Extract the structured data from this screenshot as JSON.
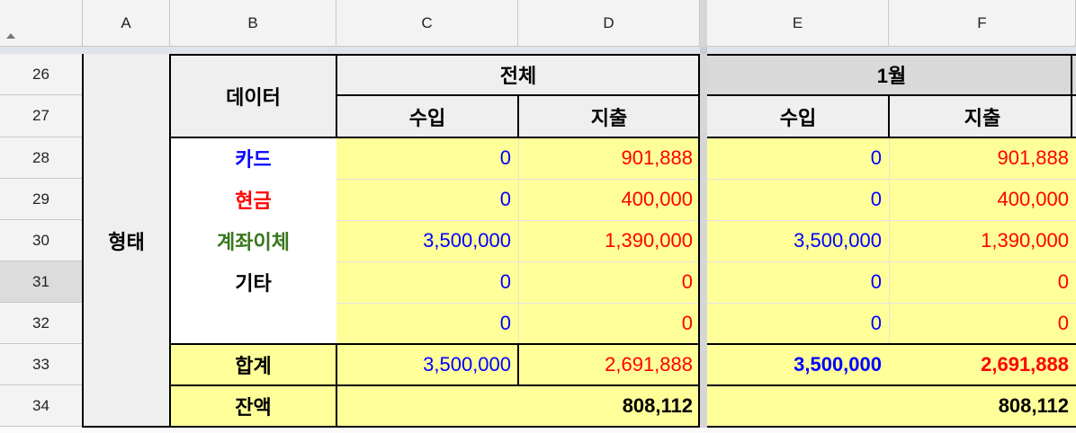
{
  "columns": [
    "A",
    "B",
    "C",
    "D",
    "E",
    "F"
  ],
  "rows": [
    "26",
    "27",
    "28",
    "29",
    "30",
    "31",
    "32",
    "33",
    "34"
  ],
  "colors": {
    "blue": "#0000ff",
    "red": "#ff0000",
    "green": "#38761d",
    "yellow": "#ffff99",
    "gray_header": "#d9d9d9",
    "light_gray": "#efefef"
  },
  "table": {
    "category": "형태",
    "data_label": "데이터",
    "total_header": "전체",
    "month_header": "1월",
    "income_label": "수입",
    "expense_label": "지출",
    "items": [
      {
        "label": "카드",
        "total_income": "0",
        "total_expense": "901,888",
        "month_income": "0",
        "month_expense": "901,888"
      },
      {
        "label": "현금",
        "total_income": "0",
        "total_expense": "400,000",
        "month_income": "0",
        "month_expense": "400,000"
      },
      {
        "label": "계좌이체",
        "total_income": "3,500,000",
        "total_expense": "1,390,000",
        "month_income": "3,500,000",
        "month_expense": "1,390,000"
      },
      {
        "label": "기타",
        "total_income": "0",
        "total_expense": "0",
        "month_income": "0",
        "month_expense": "0"
      },
      {
        "label": "",
        "total_income": "0",
        "total_expense": "0",
        "month_income": "0",
        "month_expense": "0"
      }
    ],
    "sum_label": "합계",
    "sum": {
      "total_income": "3,500,000",
      "total_expense": "2,691,888",
      "month_income": "3,500,000",
      "month_expense": "2,691,888"
    },
    "balance_label": "잔액",
    "balance": {
      "total": "808,112",
      "month": "808,112"
    }
  }
}
